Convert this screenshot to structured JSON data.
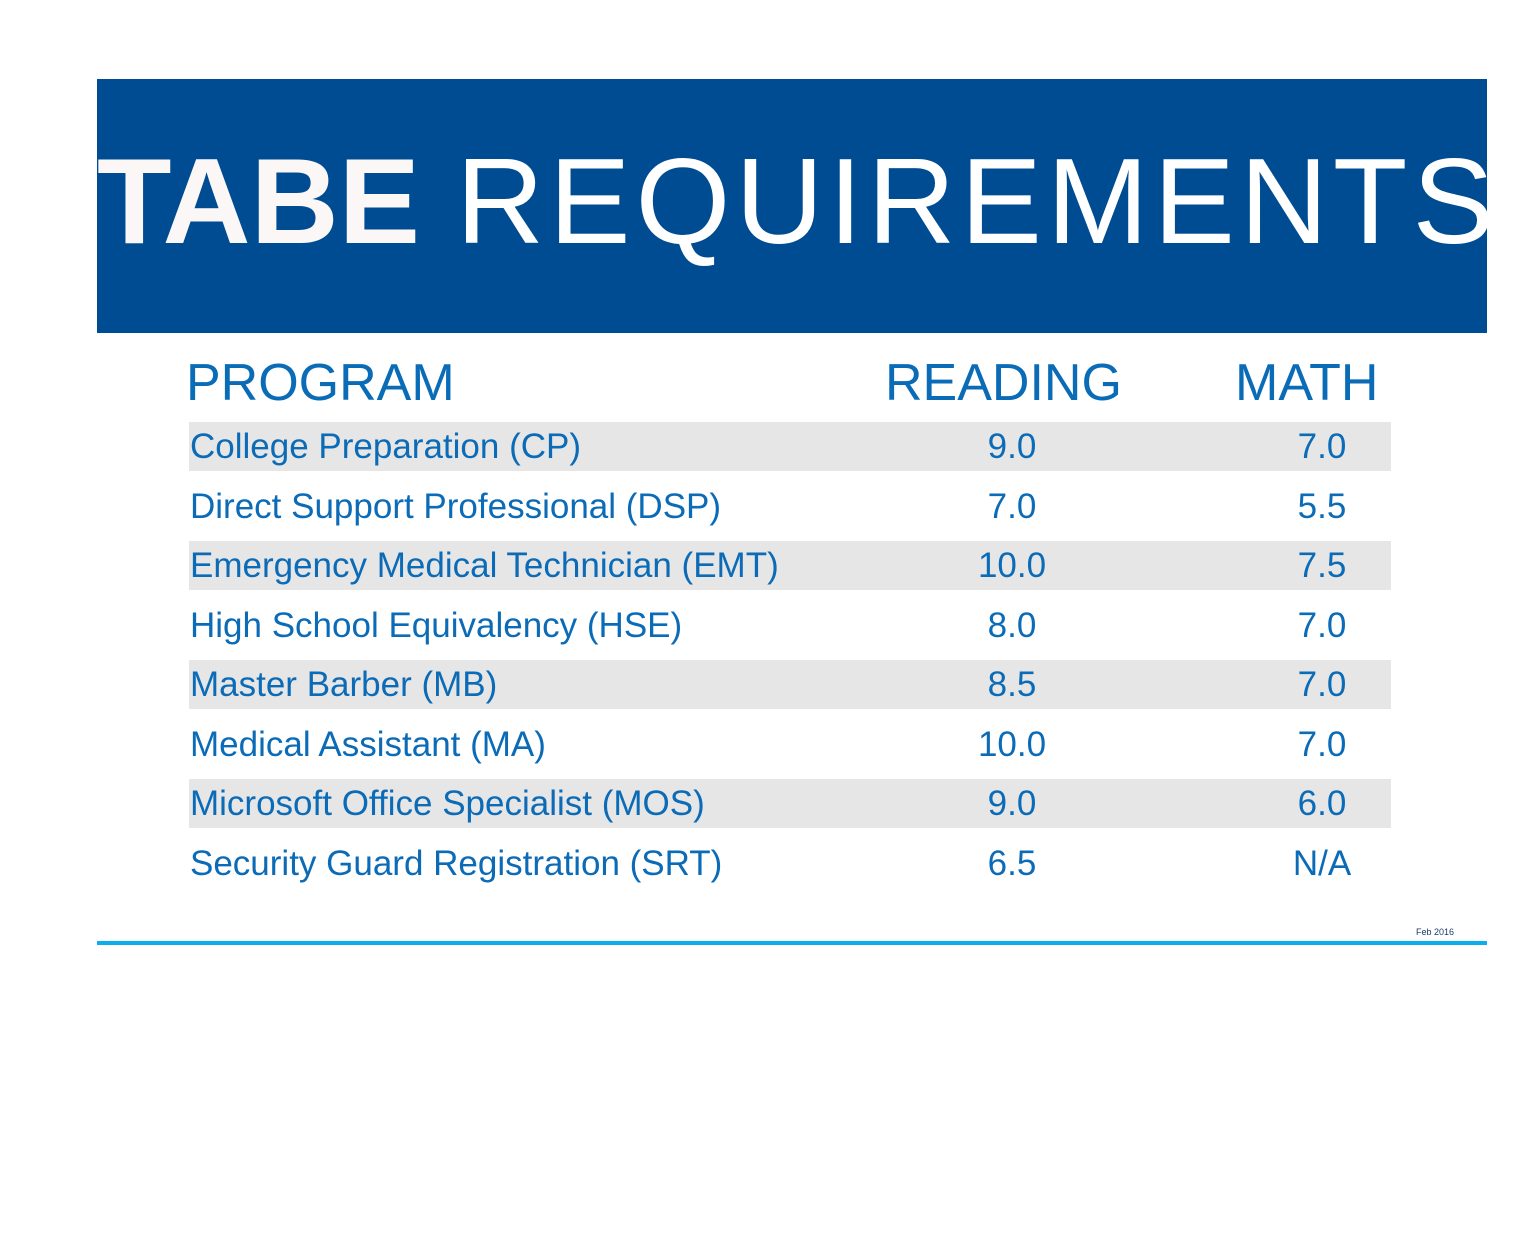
{
  "header": {
    "title_bold": "TABE",
    "title_light": "REQUIREMENTS"
  },
  "table": {
    "columns": [
      "PROGRAM",
      "READING",
      "MATH"
    ],
    "rows": [
      {
        "program": "College Preparation (CP)",
        "reading": "9.0",
        "math": "7.0"
      },
      {
        "program": "Direct Support Professional (DSP)",
        "reading": "7.0",
        "math": "5.5"
      },
      {
        "program": "Emergency Medical Technician (EMT)",
        "reading": "10.0",
        "math": "7.5"
      },
      {
        "program": "High School Equivalency (HSE)",
        "reading": "8.0",
        "math": "7.0"
      },
      {
        "program": "Master Barber (MB)",
        "reading": "8.5",
        "math": "7.0"
      },
      {
        "program": "Medical Assistant (MA)",
        "reading": "10.0",
        "math": "7.0"
      },
      {
        "program": "Microsoft Office Specialist (MOS)",
        "reading": "9.0",
        "math": "6.0"
      },
      {
        "program": "Security Guard Registration (SRT)",
        "reading": "6.5",
        "math": "N/A"
      }
    ]
  },
  "footer": {
    "date": "Feb 2016"
  },
  "colors": {
    "banner": "#004c93",
    "text_blue": "#0b6bb7",
    "row_shade": "#e6e6e6",
    "rule": "#0aaeea"
  }
}
